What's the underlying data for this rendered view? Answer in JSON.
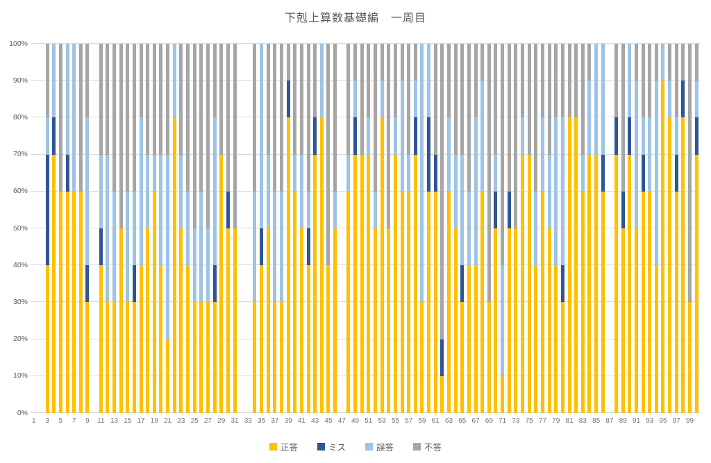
{
  "title": "下剋上算数基礎編　一周目",
  "legend": [
    {
      "label": "正答",
      "color": "#FFC000"
    },
    {
      "label": "ミス",
      "color": "#2F5597"
    },
    {
      "label": "誤答",
      "color": "#9DC3E6"
    },
    {
      "label": "不答",
      "color": "#A6A6A6"
    }
  ],
  "colors": {
    "gridline": "#D9D9D9",
    "title_text": "#595959",
    "axis_text": "#757575"
  },
  "chart_data": {
    "type": "bar",
    "stacked": true,
    "percent_stacked": true,
    "title": "下剋上算数基礎編　一周目",
    "xlabel": "",
    "ylabel": "",
    "ylim": [
      0,
      100
    ],
    "y_ticks": [
      "0%",
      "10%",
      "20%",
      "30%",
      "40%",
      "50%",
      "60%",
      "70%",
      "80%",
      "90%",
      "100%"
    ],
    "grid": true,
    "legend_position": "bottom",
    "x_count": 100,
    "x_tick_labels": [
      "1",
      "3",
      "5",
      "7",
      "9",
      "11",
      "13",
      "15",
      "17",
      "19",
      "21",
      "23",
      "25",
      "27",
      "29",
      "31",
      "33",
      "35",
      "37",
      "39",
      "41",
      "43",
      "45",
      "47",
      "49",
      "51",
      "53",
      "55",
      "57",
      "59",
      "61",
      "63",
      "65",
      "67",
      "69",
      "71",
      "73",
      "75",
      "77",
      "79",
      "81",
      "83",
      "85",
      "87",
      "89",
      "91",
      "93",
      "95",
      "97",
      "99"
    ],
    "empty_bars": [
      1,
      2,
      10,
      32,
      33,
      47,
      87
    ],
    "series": [
      {
        "name": "正答",
        "color": "#FFC000",
        "values": [
          0,
          0,
          40,
          70,
          60,
          60,
          60,
          60,
          30,
          0,
          40,
          30,
          30,
          50,
          30,
          30,
          40,
          50,
          60,
          40,
          20,
          80,
          50,
          40,
          30,
          30,
          30,
          30,
          70,
          50,
          50,
          0,
          0,
          30,
          40,
          50,
          30,
          30,
          80,
          60,
          50,
          40,
          70,
          80,
          40,
          50,
          0,
          60,
          70,
          70,
          70,
          50,
          80,
          50,
          70,
          60,
          60,
          70,
          30,
          60,
          60,
          10,
          60,
          50,
          30,
          40,
          40,
          60,
          30,
          50,
          10,
          50,
          50,
          70,
          70,
          40,
          60,
          50,
          40,
          30,
          80,
          80,
          60,
          70,
          70,
          60,
          0,
          70,
          50,
          70,
          50,
          60,
          60,
          40,
          90,
          80,
          60,
          80,
          30,
          70
        ]
      },
      {
        "name": "ミス",
        "color": "#2F5597",
        "values": [
          0,
          0,
          30,
          10,
          0,
          10,
          0,
          0,
          10,
          0,
          10,
          0,
          0,
          0,
          0,
          10,
          0,
          0,
          0,
          0,
          0,
          0,
          0,
          0,
          0,
          0,
          0,
          10,
          0,
          10,
          0,
          0,
          0,
          0,
          10,
          0,
          0,
          0,
          10,
          0,
          0,
          10,
          10,
          0,
          0,
          0,
          0,
          0,
          10,
          0,
          0,
          0,
          0,
          0,
          0,
          0,
          0,
          10,
          0,
          20,
          10,
          10,
          0,
          0,
          10,
          0,
          0,
          0,
          0,
          10,
          0,
          10,
          0,
          0,
          0,
          0,
          0,
          0,
          0,
          10,
          0,
          0,
          0,
          0,
          0,
          10,
          0,
          10,
          10,
          10,
          0,
          10,
          0,
          0,
          0,
          0,
          10,
          10,
          0,
          10
        ]
      },
      {
        "name": "誤答",
        "color": "#9DC3E6",
        "values": [
          0,
          0,
          10,
          20,
          0,
          30,
          40,
          0,
          40,
          0,
          20,
          40,
          30,
          0,
          30,
          20,
          40,
          20,
          10,
          30,
          50,
          20,
          20,
          20,
          20,
          30,
          20,
          40,
          0,
          0,
          0,
          0,
          0,
          30,
          50,
          20,
          30,
          30,
          0,
          10,
          20,
          10,
          0,
          20,
          0,
          10,
          0,
          10,
          10,
          0,
          10,
          10,
          10,
          0,
          10,
          30,
          10,
          10,
          70,
          20,
          0,
          0,
          20,
          20,
          30,
          20,
          40,
          30,
          0,
          10,
          30,
          0,
          0,
          10,
          0,
          20,
          20,
          20,
          40,
          40,
          0,
          0,
          10,
          20,
          30,
          30,
          0,
          0,
          0,
          20,
          40,
          10,
          20,
          50,
          10,
          10,
          10,
          0,
          0,
          10
        ]
      },
      {
        "name": "不答",
        "color": "#A6A6A6",
        "values": [
          0,
          0,
          20,
          0,
          40,
          0,
          0,
          40,
          20,
          0,
          30,
          30,
          40,
          50,
          40,
          40,
          20,
          30,
          30,
          30,
          30,
          0,
          30,
          40,
          50,
          40,
          50,
          20,
          30,
          40,
          50,
          0,
          0,
          40,
          0,
          30,
          40,
          40,
          10,
          30,
          30,
          40,
          20,
          0,
          60,
          40,
          0,
          30,
          10,
          30,
          20,
          40,
          10,
          50,
          20,
          10,
          30,
          10,
          0,
          0,
          30,
          80,
          20,
          30,
          30,
          40,
          20,
          10,
          70,
          30,
          60,
          40,
          50,
          20,
          30,
          40,
          20,
          30,
          20,
          20,
          20,
          20,
          30,
          10,
          0,
          0,
          0,
          20,
          40,
          0,
          10,
          20,
          20,
          10,
          0,
          10,
          20,
          10,
          70,
          10
        ]
      }
    ]
  }
}
